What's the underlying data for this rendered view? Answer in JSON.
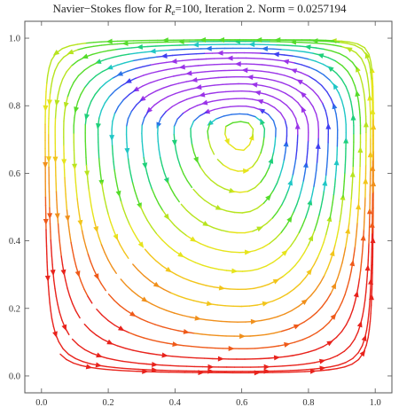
{
  "chart_data": {
    "type": "streamplot",
    "title": {
      "prefix": "Navier−Stokes flow for ",
      "symbol": "R",
      "subscript": "e",
      "suffix": "=100, Iteration 2. Norm = 0.0257194"
    },
    "xlabel": "",
    "ylabel": "",
    "xlim": [
      -0.05,
      1.05
    ],
    "ylim": [
      -0.05,
      1.05
    ],
    "x_ticks": [
      "0.0",
      "0.2",
      "0.4",
      "0.6",
      "0.8",
      "1.0"
    ],
    "y_ticks": [
      "0.0",
      "0.2",
      "0.4",
      "0.6",
      "0.8",
      "1.0"
    ],
    "grid": false,
    "domain": {
      "x": [
        0,
        1
      ],
      "y": [
        0,
        1
      ]
    },
    "vortex_center": {
      "x": 0.6,
      "y": 0.73
    },
    "rotation": "clockwise",
    "color_scale": "rainbow by |velocity|: red = slow, violet = fast",
    "colors": [
      "#e8231c",
      "#ef5a1a",
      "#f0901c",
      "#f2c51b",
      "#e6e41c",
      "#b7e41f",
      "#55dc2a",
      "#1fd07a",
      "#20c7c6",
      "#2a73e8",
      "#3f3ff0",
      "#9b34e8"
    ]
  }
}
